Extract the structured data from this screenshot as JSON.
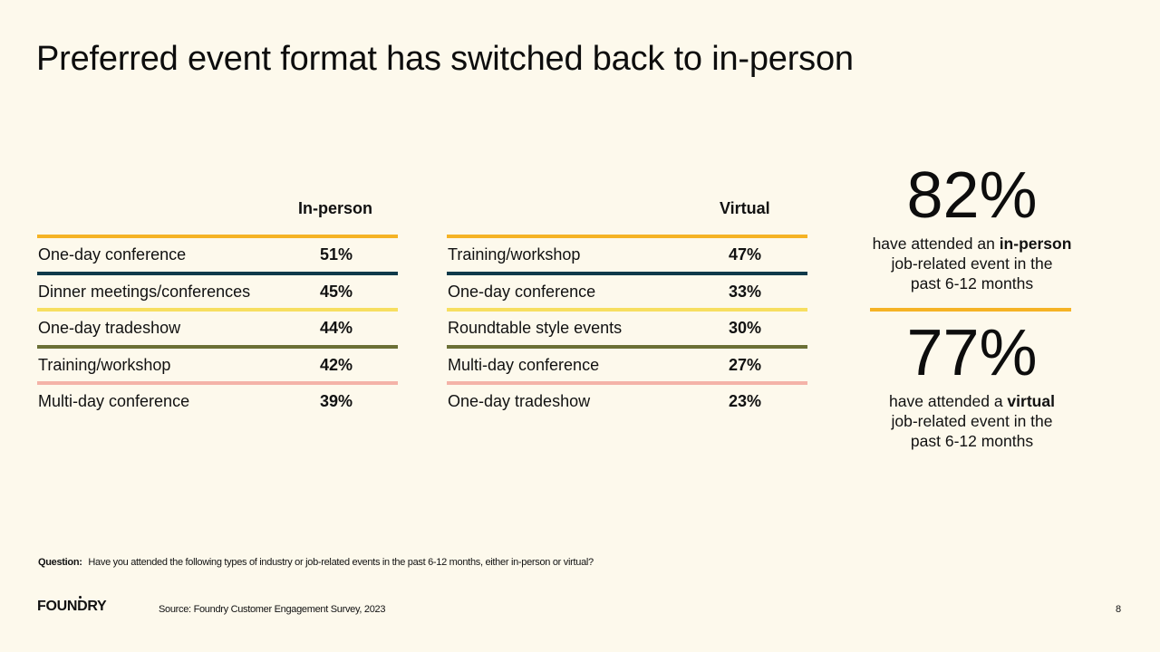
{
  "title": "Preferred event format has switched back to in-person",
  "in_person_table": {
    "header": "In-person",
    "rows": [
      {
        "label": "One-day conference",
        "value": "51%",
        "line_color": "#f5b325"
      },
      {
        "label": "Dinner meetings/conferences",
        "value": "45%",
        "line_color": "#0f3a4a"
      },
      {
        "label": "One-day tradeshow",
        "value": "44%",
        "line_color": "#f7df60"
      },
      {
        "label": "Training/workshop",
        "value": "42%",
        "line_color": "#6b7036"
      },
      {
        "label": "Multi-day conference",
        "value": "39%",
        "line_color": "#f4b3a8"
      }
    ]
  },
  "virtual_table": {
    "header": "Virtual",
    "rows": [
      {
        "label": "Training/workshop",
        "value": "47%",
        "line_color": "#f5b325"
      },
      {
        "label": "One-day conference",
        "value": "33%",
        "line_color": "#0f3a4a"
      },
      {
        "label": "Roundtable style events",
        "value": "30%",
        "line_color": "#f7df60"
      },
      {
        "label": "Multi-day conference",
        "value": "27%",
        "line_color": "#6b7036"
      },
      {
        "label": "One-day tradeshow",
        "value": "23%",
        "line_color": "#f4b3a8"
      }
    ]
  },
  "stats": [
    {
      "value": "82%",
      "text_before": "have attended an ",
      "emphasis": "in-person",
      "text_after": "job-related event in the past 6-12 months"
    },
    {
      "value": "77%",
      "text_before": "have attended a ",
      "emphasis": "virtual",
      "text_after": "job-related event in the past 6-12 months"
    }
  ],
  "accent_color": "#f5b325",
  "footer": {
    "question_label": "Question:",
    "question_text": "Have you attended the following types of industry or job-related events in the past 6-12 months, either in-person or virtual?",
    "logo_text": "FOUNDRY",
    "source": "Source: Foundry Customer Engagement Survey, 2023",
    "page_number": "8"
  }
}
